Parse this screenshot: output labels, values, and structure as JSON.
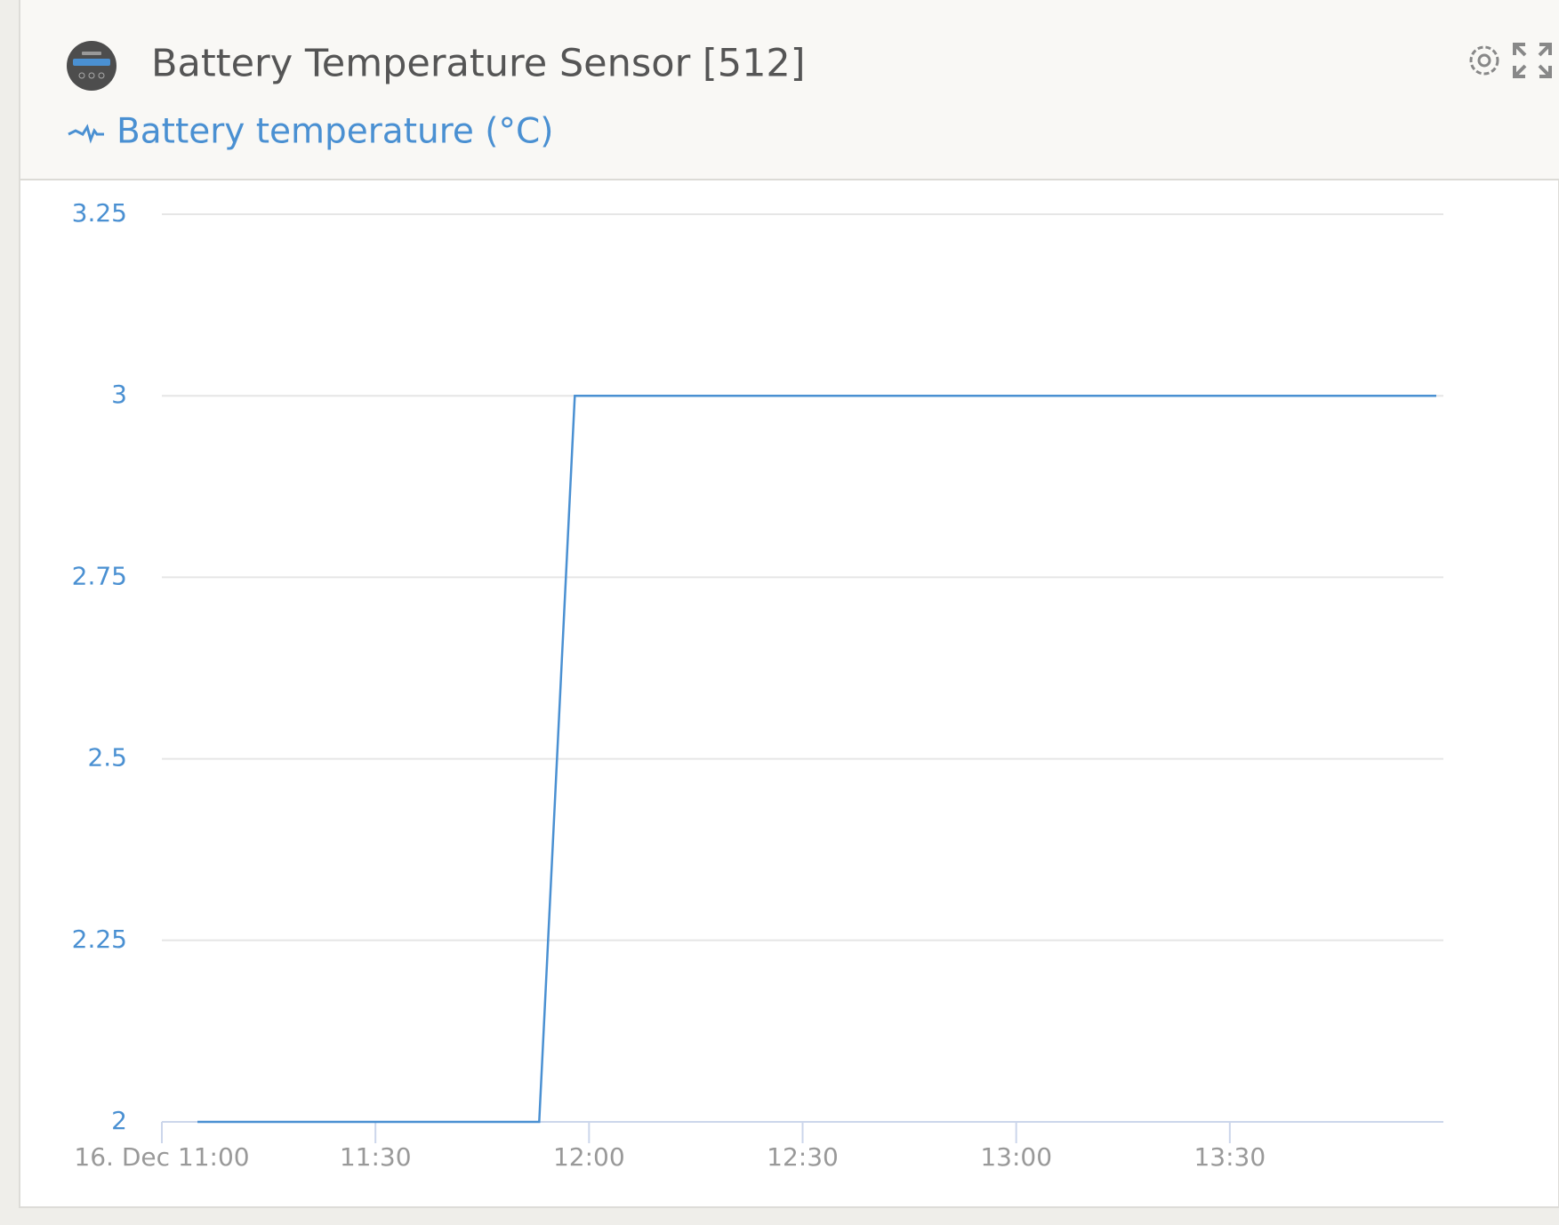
{
  "title": "Battery Temperature Sensor [512]",
  "chart_data": {
    "type": "line",
    "x": [
      "11:05",
      "11:53",
      "11:58",
      "13:59"
    ],
    "series": [
      {
        "name": "Battery temperature (°C)",
        "color": "#4a90d2",
        "values": [
          2,
          2,
          3,
          3
        ]
      }
    ],
    "xlim": [
      "11:00",
      "14:00"
    ],
    "xticks": [
      {
        "value": "11:00",
        "label": "16. Dec 11:00"
      },
      "11:30",
      "12:00",
      "12:30",
      "13:00",
      "13:30"
    ],
    "ylim": [
      2,
      3.25
    ],
    "yticks": [
      2,
      2.25,
      2.5,
      2.75,
      3,
      3.25
    ],
    "grid": true
  }
}
